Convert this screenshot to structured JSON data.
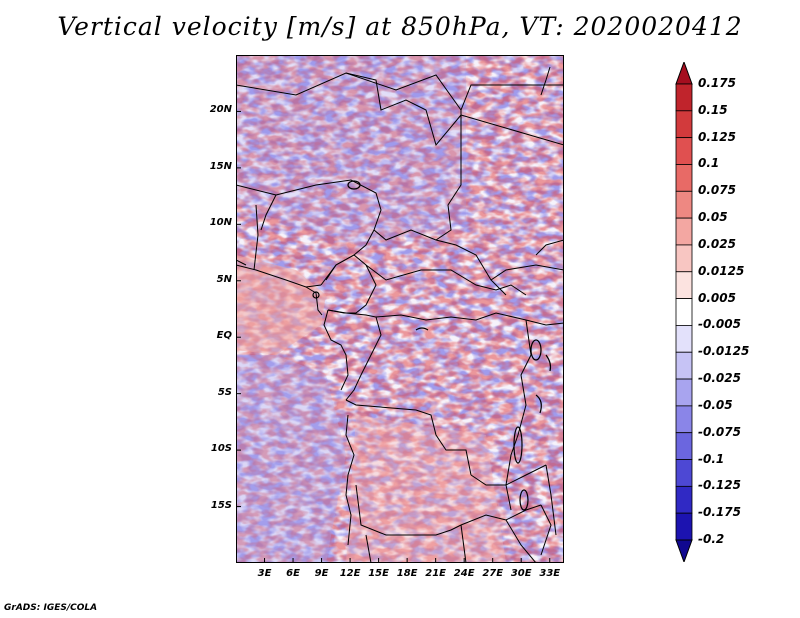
{
  "title": "Vertical velocity [m/s] at 850hPa, VT: 2020020412",
  "footer": "GrADS: IGES/COLA",
  "map": {
    "variable": "Vertical velocity",
    "units": "m/s",
    "level": "850hPa",
    "valid_time": "2020020412",
    "lon_range": [
      0,
      34.5
    ],
    "lat_range": [
      -20,
      25
    ],
    "lat_labels": [
      {
        "lat": 20,
        "text": "20N"
      },
      {
        "lat": 15,
        "text": "15N"
      },
      {
        "lat": 10,
        "text": "10N"
      },
      {
        "lat": 5,
        "text": "5N"
      },
      {
        "lat": 0,
        "text": "EQ"
      },
      {
        "lat": -5,
        "text": "5S"
      },
      {
        "lat": -10,
        "text": "10S"
      },
      {
        "lat": -15,
        "text": "15S"
      }
    ],
    "lon_labels": [
      {
        "lon": 3,
        "text": "3E"
      },
      {
        "lon": 6,
        "text": "6E"
      },
      {
        "lon": 9,
        "text": "9E"
      },
      {
        "lon": 12,
        "text": "12E"
      },
      {
        "lon": 15,
        "text": "15E"
      },
      {
        "lon": 18,
        "text": "18E"
      },
      {
        "lon": 21,
        "text": "21E"
      },
      {
        "lon": 24,
        "text": "24E"
      },
      {
        "lon": 27,
        "text": "27E"
      },
      {
        "lon": 30,
        "text": "30E"
      },
      {
        "lon": 33,
        "text": "33E"
      }
    ]
  },
  "colorbar": {
    "labels": [
      "0.175",
      "0.15",
      "0.125",
      "0.1",
      "0.075",
      "0.05",
      "0.025",
      "0.0125",
      "0.005",
      "-0.005",
      "-0.0125",
      "-0.025",
      "-0.05",
      "-0.075",
      "-0.1",
      "-0.125",
      "-0.175",
      "-0.2"
    ],
    "colors": [
      "#a50e1f",
      "#c0242c",
      "#d23a3c",
      "#e05050",
      "#e86a66",
      "#ee8882",
      "#f3a7a2",
      "#f8c6c2",
      "#fce3e0",
      "#ffffff",
      "#e3e1fb",
      "#c6c3f5",
      "#a8a4ef",
      "#8a85e8",
      "#6b66df",
      "#4d48d4",
      "#3029c4",
      "#1c13b0",
      "#100890"
    ]
  }
}
